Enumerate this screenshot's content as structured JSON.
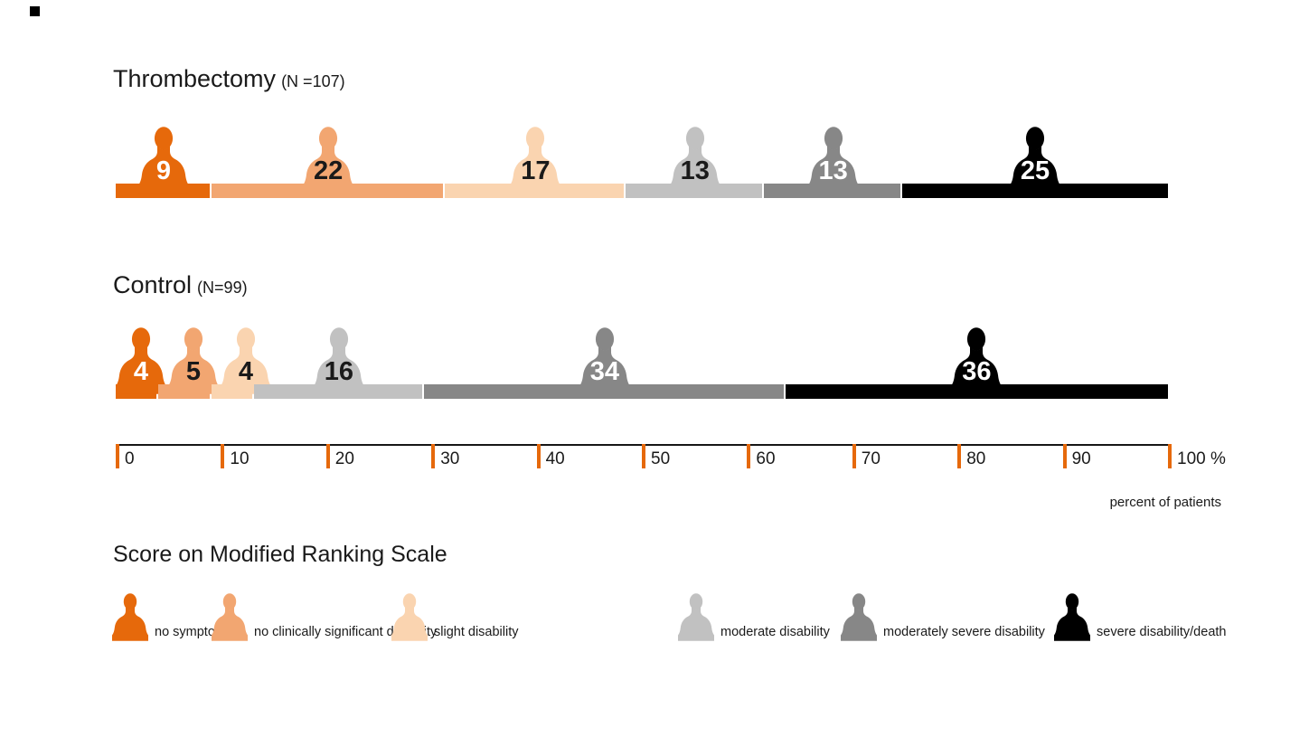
{
  "chart_data": {
    "type": "bar",
    "subtype": "stacked-percentage-pictogram",
    "legend_title": "Score on Modified Ranking Scale",
    "categories": [
      "no symptoms",
      "no clinically significant disability",
      "slight disability",
      "moderate disability",
      "moderately severe disability",
      "severe disability/death"
    ],
    "colors": [
      "#E6690B",
      "#F2A671",
      "#FAD4B0",
      "#C1C1C1",
      "#878787",
      "#000000"
    ],
    "value_label_colors": [
      "#ffffff",
      "#1a1a1a",
      "#1a1a1a",
      "#1a1a1a",
      "#ffffff",
      "#ffffff"
    ],
    "series": [
      {
        "name": "Thrombectomy",
        "n_label": "(N =107)",
        "values": [
          9,
          22,
          17,
          13,
          13,
          25
        ]
      },
      {
        "name": "Control",
        "n_label": "(N=99)",
        "values": [
          4,
          5,
          4,
          16,
          34,
          36
        ]
      }
    ],
    "axis": {
      "ticks": [
        0,
        10,
        20,
        30,
        40,
        50,
        60,
        70,
        80,
        90
      ],
      "last_tick_label": "100 %",
      "axis_caption": "percent of patients",
      "tick_color": "#E6690B",
      "xlim": [
        0,
        100
      ],
      "grid": false,
      "legend_position": "bottom"
    }
  }
}
